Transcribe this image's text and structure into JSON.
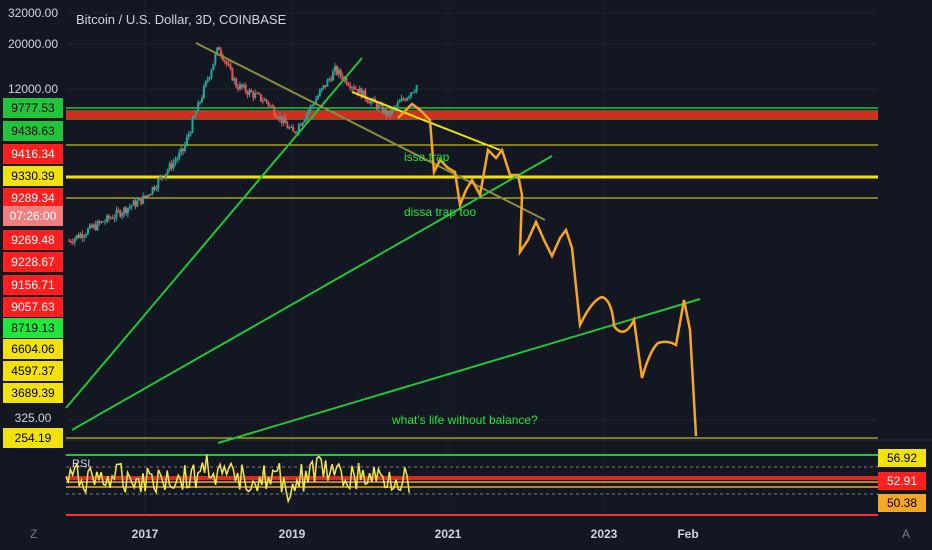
{
  "title": "Bitcoin / U.S. Dollar, 3D, COINBASE",
  "colors": {
    "background": "#131722",
    "candle_up": "#26a69a",
    "candle_down": "#ef5350",
    "projection": "#f5a623",
    "trend_green": "#21c43a",
    "trend_olive": "#8c8c3c",
    "trend_yellow": "#f2e20a",
    "rsi": "#f5e94a"
  },
  "price_axis": [
    {
      "text": "32000.00",
      "bg": "",
      "fg": "#d1d4dc"
    },
    {
      "text": "20000.00",
      "bg": "",
      "fg": "#d1d4dc"
    },
    {
      "text": "12000.00",
      "bg": "",
      "fg": "#d1d4dc"
    },
    {
      "text": "9777.53",
      "bg": "#21c43a",
      "fg": "#000000"
    },
    {
      "text": "9438.63",
      "bg": "#21c43a",
      "fg": "#000000"
    },
    {
      "text": "9416.34",
      "bg": "#ff1f1f",
      "fg": "#ffffff"
    },
    {
      "text": "9330.39",
      "bg": "#f2e20a",
      "fg": "#000000"
    },
    {
      "text": "9289.34",
      "bg": "#ff1f1f",
      "fg": "#ffffff"
    },
    {
      "text": "07:26:00",
      "bg": "#f08080",
      "fg": "#ffffff"
    },
    {
      "text": "9269.48",
      "bg": "#ff1f1f",
      "fg": "#ffffff"
    },
    {
      "text": "9228.67",
      "bg": "#ff1f1f",
      "fg": "#ffffff"
    },
    {
      "text": "9156.71",
      "bg": "#ff1f1f",
      "fg": "#ffffff"
    },
    {
      "text": "9057.63",
      "bg": "#ff1f1f",
      "fg": "#ffffff"
    },
    {
      "text": "8719.13",
      "bg": "#21e63c",
      "fg": "#000000"
    },
    {
      "text": "6604.06",
      "bg": "#f2e20a",
      "fg": "#000000"
    },
    {
      "text": "4597.37",
      "bg": "#f2e20a",
      "fg": "#000000"
    },
    {
      "text": "3689.39",
      "bg": "#f2e20a",
      "fg": "#000000"
    },
    {
      "text": "325.00",
      "bg": "",
      "fg": "#d1d4dc"
    },
    {
      "text": "254.19",
      "bg": "#f2e20a",
      "fg": "#000000"
    }
  ],
  "rsi_axis": [
    {
      "text": "56.92",
      "bg": "#f2e20a"
    },
    {
      "text": "52.91",
      "bg": "#ff1f1f"
    },
    {
      "text": "50.38",
      "bg": "#f5a623"
    }
  ],
  "x_axis_labels": [
    "2017",
    "2019",
    "2021",
    "2023",
    "Feb"
  ],
  "annotations": {
    "issa": "issa trap",
    "dissa": "dissa trap too",
    "life": "what's life without balance?"
  },
  "rsi_label": "RSI",
  "corner_left": "Z",
  "corner_right": "A",
  "chart_data": {
    "type": "line",
    "title": "Bitcoin / U.S. Dollar, 3D, COINBASE",
    "x_ticks": [
      "2017",
      "2019",
      "2021",
      "2023",
      "Feb"
    ],
    "y_ticks": [
      "32000.00",
      "20000.00",
      "12000.00",
      "325.00"
    ],
    "price_series_approx": [
      {
        "t": 2016.0,
        "v": 430
      },
      {
        "t": 2016.5,
        "v": 650
      },
      {
        "t": 2017.0,
        "v": 1000
      },
      {
        "t": 2017.5,
        "v": 2500
      },
      {
        "t": 2017.97,
        "v": 19000
      },
      {
        "t": 2018.2,
        "v": 9000
      },
      {
        "t": 2018.6,
        "v": 6500
      },
      {
        "t": 2018.95,
        "v": 3500
      },
      {
        "t": 2019.5,
        "v": 12000
      },
      {
        "t": 2019.9,
        "v": 7200
      },
      {
        "t": 2020.2,
        "v": 5000
      },
      {
        "t": 2020.6,
        "v": 9300
      }
    ],
    "projection_note": "hand-drawn orange projected path",
    "rsi_levels": [
      56.92,
      52.91,
      50.38
    ]
  }
}
